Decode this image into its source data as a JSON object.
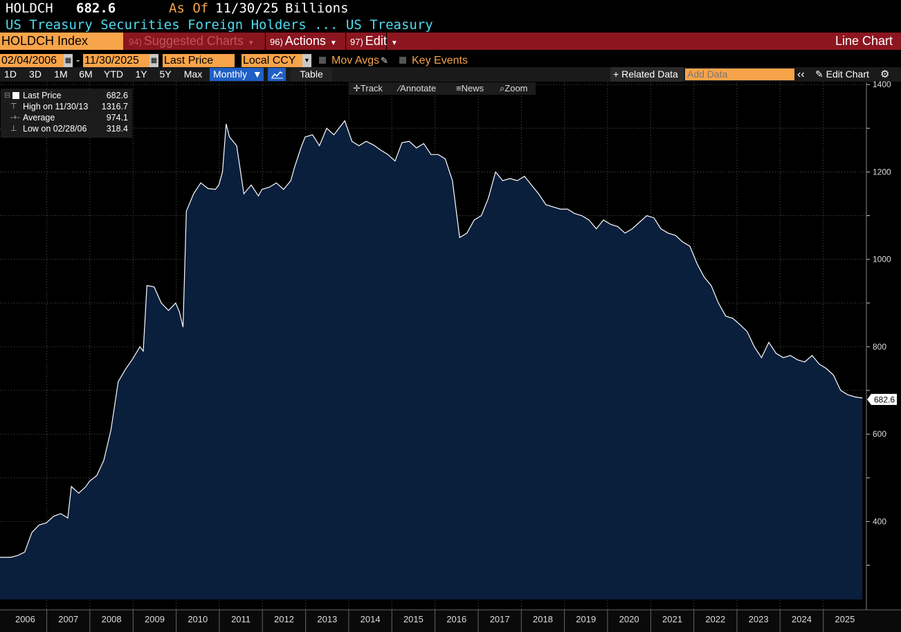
{
  "header": {
    "ticker": "HOLDCH",
    "price": "682.6",
    "as_of_label": "As Of",
    "as_of_date": "11/30/25",
    "units": "Billions",
    "description": "US Treasury Securities Foreign Holders ...",
    "source": "US Treasury"
  },
  "toolbar": {
    "security": "HOLDCH Index",
    "suggested_num": "94)",
    "suggested": "Suggested Charts",
    "actions_num": "96)",
    "actions": "Actions",
    "edit_num": "97)",
    "edit": "Edit",
    "chart_type": "Line Chart"
  },
  "options": {
    "start_date": "02/04/2006",
    "separator": "-",
    "end_date": "11/30/2025",
    "field": "Last Price",
    "currency": "Local CCY",
    "mov_avgs": "Mov Avgs",
    "key_events": "Key Events"
  },
  "periods": [
    "1D",
    "3D",
    "1M",
    "6M",
    "YTD",
    "1Y",
    "5Y",
    "Max"
  ],
  "frequency": "Monthly",
  "table_label": "Table",
  "related_data": "Related Data",
  "add_data_placeholder": "Add Data",
  "edit_chart": "Edit Chart",
  "chart_tools": [
    "Track",
    "Annotate",
    "News",
    "Zoom"
  ],
  "legend": [
    {
      "label": "Last Price",
      "value": "682.6"
    },
    {
      "label": "High on 11/30/13",
      "value": "1316.7"
    },
    {
      "label": "Average",
      "value": "974.1"
    },
    {
      "label": "Low on 02/28/06",
      "value": "318.4"
    }
  ],
  "colors": {
    "line": "#ffffff",
    "area": "#0a1f3c",
    "accent": "#f7a44a",
    "bar": "#8b1620",
    "selected": "#1f5fc6"
  },
  "chart_data": {
    "type": "area",
    "title": "",
    "xlabel": "",
    "ylabel": "",
    "ylim": [
      220,
      1405
    ],
    "yticks": [
      400,
      600,
      800,
      1000,
      1200,
      1400
    ],
    "xlim": [
      "2005-12-01",
      "2026-01-01"
    ],
    "xticks": [
      "2006",
      "2007",
      "2008",
      "2009",
      "2010",
      "2011",
      "2012",
      "2013",
      "2014",
      "2015",
      "2016",
      "2017",
      "2018",
      "2019",
      "2020",
      "2021",
      "2022",
      "2023",
      "2024",
      "2025"
    ],
    "grid": true,
    "last_value_label": "682.6",
    "series": [
      {
        "name": "Last Price",
        "points": [
          [
            "2006-02",
            318
          ],
          [
            "2006-04",
            322
          ],
          [
            "2006-06",
            330
          ],
          [
            "2006-08",
            375
          ],
          [
            "2006-10",
            392
          ],
          [
            "2006-12",
            397
          ],
          [
            "2007-02",
            412
          ],
          [
            "2007-04",
            418
          ],
          [
            "2007-06",
            408
          ],
          [
            "2007-07",
            480
          ],
          [
            "2007-09",
            465
          ],
          [
            "2007-11",
            480
          ],
          [
            "2007-12",
            492
          ],
          [
            "2008-02",
            505
          ],
          [
            "2008-04",
            540
          ],
          [
            "2008-06",
            610
          ],
          [
            "2008-08",
            720
          ],
          [
            "2008-10",
            748
          ],
          [
            "2008-12",
            772
          ],
          [
            "2009-02",
            800
          ],
          [
            "2009-03",
            790
          ],
          [
            "2009-04",
            940
          ],
          [
            "2009-06",
            937
          ],
          [
            "2009-08",
            900
          ],
          [
            "2009-10",
            883
          ],
          [
            "2009-12",
            900
          ],
          [
            "2010-01",
            880
          ],
          [
            "2010-02",
            845
          ],
          [
            "2010-03",
            1110
          ],
          [
            "2010-05",
            1150
          ],
          [
            "2010-07",
            1175
          ],
          [
            "2010-09",
            1162
          ],
          [
            "2010-11",
            1160
          ],
          [
            "2010-12",
            1170
          ],
          [
            "2011-01",
            1200
          ],
          [
            "2011-02",
            1310
          ],
          [
            "2011-03",
            1280
          ],
          [
            "2011-05",
            1260
          ],
          [
            "2011-07",
            1150
          ],
          [
            "2011-09",
            1170
          ],
          [
            "2011-11",
            1145
          ],
          [
            "2011-12",
            1160
          ],
          [
            "2012-02",
            1165
          ],
          [
            "2012-04",
            1175
          ],
          [
            "2012-06",
            1160
          ],
          [
            "2012-08",
            1180
          ],
          [
            "2012-09",
            1210
          ],
          [
            "2012-11",
            1260
          ],
          [
            "2012-12",
            1280
          ],
          [
            "2013-02",
            1285
          ],
          [
            "2013-04",
            1260
          ],
          [
            "2013-06",
            1300
          ],
          [
            "2013-08",
            1285
          ],
          [
            "2013-11",
            1317
          ],
          [
            "2014-01",
            1270
          ],
          [
            "2014-03",
            1260
          ],
          [
            "2014-05",
            1270
          ],
          [
            "2014-07",
            1262
          ],
          [
            "2014-09",
            1250
          ],
          [
            "2014-11",
            1240
          ],
          [
            "2015-01",
            1225
          ],
          [
            "2015-03",
            1267
          ],
          [
            "2015-05",
            1270
          ],
          [
            "2015-07",
            1255
          ],
          [
            "2015-09",
            1265
          ],
          [
            "2015-11",
            1240
          ],
          [
            "2016-01",
            1240
          ],
          [
            "2016-03",
            1230
          ],
          [
            "2016-05",
            1180
          ],
          [
            "2016-07",
            1050
          ],
          [
            "2016-09",
            1060
          ],
          [
            "2016-11",
            1090
          ],
          [
            "2017-01",
            1100
          ],
          [
            "2017-03",
            1140
          ],
          [
            "2017-05",
            1200
          ],
          [
            "2017-07",
            1180
          ],
          [
            "2017-09",
            1185
          ],
          [
            "2017-11",
            1180
          ],
          [
            "2018-01",
            1190
          ],
          [
            "2018-03",
            1170
          ],
          [
            "2018-05",
            1150
          ],
          [
            "2018-07",
            1125
          ],
          [
            "2018-09",
            1120
          ],
          [
            "2018-11",
            1115
          ],
          [
            "2019-01",
            1115
          ],
          [
            "2019-03",
            1105
          ],
          [
            "2019-05",
            1100
          ],
          [
            "2019-07",
            1090
          ],
          [
            "2019-09",
            1070
          ],
          [
            "2019-11",
            1090
          ],
          [
            "2020-01",
            1080
          ],
          [
            "2020-03",
            1075
          ],
          [
            "2020-05",
            1060
          ],
          [
            "2020-07",
            1070
          ],
          [
            "2020-09",
            1085
          ],
          [
            "2020-11",
            1100
          ],
          [
            "2021-01",
            1095
          ],
          [
            "2021-03",
            1070
          ],
          [
            "2021-05",
            1060
          ],
          [
            "2021-07",
            1055
          ],
          [
            "2021-09",
            1040
          ],
          [
            "2021-11",
            1030
          ],
          [
            "2022-01",
            990
          ],
          [
            "2022-03",
            960
          ],
          [
            "2022-05",
            940
          ],
          [
            "2022-07",
            900
          ],
          [
            "2022-09",
            870
          ],
          [
            "2022-11",
            865
          ],
          [
            "2023-01",
            850
          ],
          [
            "2023-03",
            835
          ],
          [
            "2023-05",
            800
          ],
          [
            "2023-07",
            775
          ],
          [
            "2023-09",
            810
          ],
          [
            "2023-11",
            785
          ],
          [
            "2024-01",
            775
          ],
          [
            "2024-03",
            780
          ],
          [
            "2024-05",
            770
          ],
          [
            "2024-07",
            765
          ],
          [
            "2024-09",
            780
          ],
          [
            "2024-11",
            760
          ],
          [
            "2025-01",
            750
          ],
          [
            "2025-03",
            735
          ],
          [
            "2025-05",
            700
          ],
          [
            "2025-07",
            690
          ],
          [
            "2025-09",
            685
          ],
          [
            "2025-11",
            682.6
          ]
        ]
      }
    ]
  }
}
